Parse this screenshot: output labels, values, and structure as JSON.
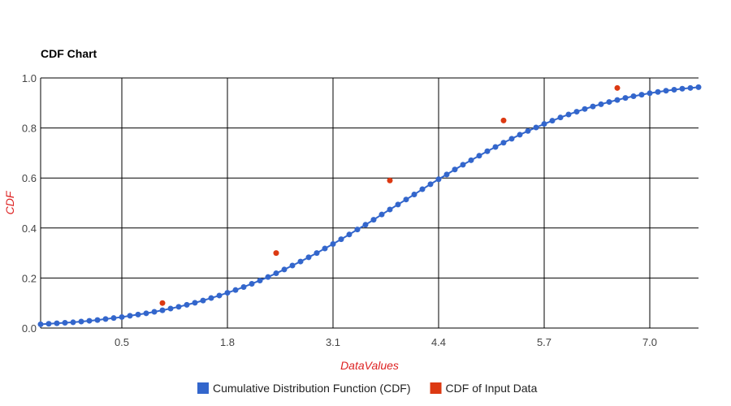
{
  "chart_data": {
    "type": "scatter",
    "title": "CDF Chart",
    "xlabel": "DataValues",
    "ylabel": "CDF",
    "xlim": [
      -0.5,
      7.6
    ],
    "ylim": [
      0,
      1
    ],
    "x_ticks": [
      0.5,
      1.8,
      3.1,
      4.4,
      5.7,
      7.0
    ],
    "x_tick_labels": [
      "0.5",
      "1.8",
      "3.1",
      "4.4",
      "5.7",
      "7.0"
    ],
    "y_ticks": [
      0,
      0.2,
      0.4,
      0.6,
      0.8,
      1.0
    ],
    "y_tick_labels": [
      "0.0",
      "0.2",
      "0.4",
      "0.6",
      "0.8",
      "1.0"
    ],
    "grid": true,
    "legend_position": "bottom",
    "axis_title_color": "#dd2222",
    "series": [
      {
        "name": "Cumulative Distribution Function (CDF)",
        "color": "#3366cc",
        "style": "line-with-points",
        "x": [
          -0.5,
          -0.4,
          -0.3,
          -0.2,
          -0.1,
          0.0,
          0.1,
          0.2,
          0.3,
          0.4,
          0.5,
          0.6,
          0.7,
          0.8,
          0.9,
          1.0,
          1.1,
          1.2,
          1.3,
          1.4,
          1.5,
          1.6,
          1.7,
          1.8,
          1.9,
          2.0,
          2.1,
          2.2,
          2.3,
          2.4,
          2.5,
          2.6,
          2.7,
          2.8,
          2.9,
          3.0,
          3.1,
          3.2,
          3.3,
          3.4,
          3.5,
          3.6,
          3.7,
          3.8,
          3.9,
          4.0,
          4.1,
          4.2,
          4.3,
          4.4,
          4.5,
          4.6,
          4.7,
          4.8,
          4.9,
          5.0,
          5.1,
          5.2,
          5.3,
          5.4,
          5.5,
          5.6,
          5.7,
          5.8,
          5.9,
          6.0,
          6.1,
          6.2,
          6.3,
          6.4,
          6.5,
          6.6,
          6.7,
          6.8,
          6.9,
          7.0,
          7.1,
          7.2,
          7.3,
          7.4,
          7.5,
          7.6
        ],
        "y": [
          0.015,
          0.017,
          0.019,
          0.021,
          0.023,
          0.026,
          0.029,
          0.032,
          0.036,
          0.04,
          0.044,
          0.049,
          0.054,
          0.059,
          0.065,
          0.071,
          0.078,
          0.085,
          0.093,
          0.101,
          0.11,
          0.12,
          0.13,
          0.141,
          0.152,
          0.164,
          0.177,
          0.19,
          0.204,
          0.219,
          0.234,
          0.25,
          0.266,
          0.283,
          0.3,
          0.318,
          0.336,
          0.355,
          0.374,
          0.394,
          0.413,
          0.433,
          0.454,
          0.474,
          0.494,
          0.514,
          0.534,
          0.555,
          0.575,
          0.595,
          0.614,
          0.634,
          0.653,
          0.671,
          0.689,
          0.707,
          0.724,
          0.741,
          0.757,
          0.773,
          0.788,
          0.802,
          0.816,
          0.829,
          0.842,
          0.854,
          0.865,
          0.876,
          0.886,
          0.895,
          0.904,
          0.912,
          0.92,
          0.927,
          0.933,
          0.939,
          0.944,
          0.949,
          0.953,
          0.957,
          0.96,
          0.963
        ]
      },
      {
        "name": "CDF of Input Data",
        "color": "#dc3912",
        "style": "points",
        "x": [
          1.0,
          2.4,
          3.8,
          5.2,
          6.6
        ],
        "y": [
          0.1,
          0.3,
          0.59,
          0.83,
          0.96
        ]
      }
    ]
  }
}
